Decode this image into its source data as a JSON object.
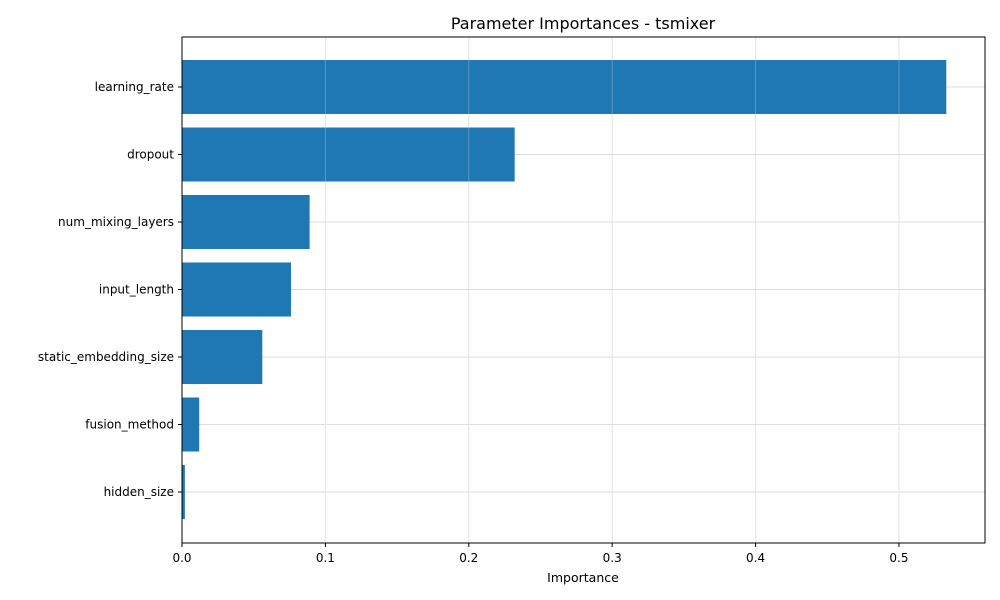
{
  "chart_data": {
    "type": "bar",
    "orientation": "horizontal",
    "title": "Parameter Importances - tsmixer",
    "xlabel": "Importance",
    "ylabel": "",
    "categories": [
      "learning_rate",
      "dropout",
      "num_mixing_layers",
      "input_length",
      "static_embedding_size",
      "fusion_method",
      "hidden_size"
    ],
    "values": [
      0.533,
      0.232,
      0.089,
      0.076,
      0.056,
      0.012,
      0.002
    ],
    "xlim": [
      0.0,
      0.56
    ],
    "xticks": [
      0.0,
      0.1,
      0.2,
      0.3,
      0.4,
      0.5
    ],
    "xtick_labels": [
      "0.0",
      "0.1",
      "0.2",
      "0.3",
      "0.4",
      "0.5"
    ],
    "grid": true,
    "colors": {
      "bar": "#1f77b4",
      "grid": "#dddddd",
      "axis": "#000000"
    }
  }
}
